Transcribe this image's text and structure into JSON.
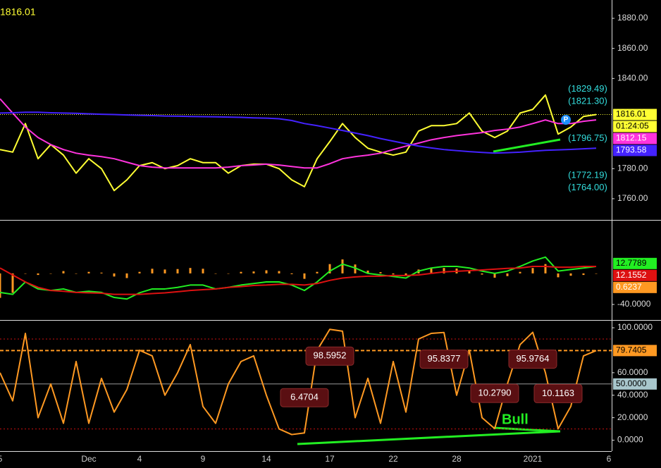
{
  "chart_data": [
    {
      "type": "line",
      "top_label": "1816.01",
      "marker": "P",
      "ylim": [
        1745.9,
        1892.2
      ],
      "yticks": [
        {
          "value": 1880,
          "label": "1880.00"
        },
        {
          "value": 1860,
          "label": "1860.00"
        },
        {
          "value": 1840,
          "label": "1840.00"
        },
        {
          "value": 1780,
          "label": "1780.00"
        },
        {
          "value": 1760,
          "label": "1760.00"
        }
      ],
      "series": [
        {
          "color": "#ffff33",
          "values": [
            1792.7,
            1791,
            1810,
            1786.6,
            1796,
            1789,
            1777,
            1786.6,
            1780,
            1765.4,
            1772.5,
            1782,
            1784,
            1780,
            1782,
            1786.6,
            1784,
            1784,
            1777,
            1782,
            1783,
            1783,
            1780,
            1772.5,
            1768,
            1786.6,
            1798,
            1810,
            1800.7,
            1793.6,
            1791,
            1789,
            1791,
            1805,
            1808.6,
            1808.6,
            1810,
            1817,
            1805,
            1800.7,
            1805,
            1817,
            1819.4,
            1829,
            1803,
            1807.7,
            1814.7,
            1816,
            null
          ]
        },
        {
          "color": "#ff33dd",
          "values": [
            1826.5,
            1817,
            1807.7,
            1800.7,
            1796,
            1792.7,
            1790.3,
            1789,
            1788,
            1786.6,
            1784.3,
            1782,
            1781,
            1780.5,
            1780.5,
            1780.5,
            1780.5,
            1780.5,
            1781,
            1782,
            1782.4,
            1783,
            1782.4,
            1781.4,
            1780.5,
            1780.5,
            1783.3,
            1786.6,
            1788,
            1789,
            1790.3,
            1792.7,
            1795,
            1797,
            1799.2,
            1800.7,
            1802,
            1803,
            1804,
            1805.4,
            1806.3,
            1807.7,
            1810,
            1812.4,
            1810,
            1810,
            1811.5,
            1812.4,
            null
          ]
        },
        {
          "color": "#4422ff",
          "values": [
            1817,
            1817.2,
            1817.5,
            1817.5,
            1817.2,
            1817,
            1816.8,
            1816.5,
            1816.2,
            1816,
            1815.7,
            1815.5,
            1815.3,
            1815,
            1814.9,
            1814.7,
            1814.6,
            1814.5,
            1814.3,
            1814.1,
            1813.8,
            1813.6,
            1813.2,
            1812,
            1810,
            1808.6,
            1807,
            1805.4,
            1803.7,
            1802,
            1800,
            1798.3,
            1796.6,
            1795,
            1793.8,
            1792.7,
            1792,
            1791.3,
            1790.8,
            1790.3,
            1790.6,
            1791,
            1791.6,
            1792.2,
            1792.5,
            1792.8,
            1793.2,
            1793.6,
            null
          ]
        }
      ],
      "annotations": [
        {
          "value": 1829.49,
          "label": "(1829.49)"
        },
        {
          "value": 1821.3,
          "label": "(1821.30)"
        },
        {
          "value": 1796.75,
          "label": "(1796.75)"
        },
        {
          "value": 1772.19,
          "label": "(1772.19)"
        },
        {
          "value": 1764,
          "label": "(1764.00)"
        }
      ],
      "right_labels": [
        {
          "value": 1816.01,
          "label": "1816.01",
          "color": "#ffff33",
          "text_color": "#000000",
          "line": "dotted"
        },
        {
          "label": "01:24:05",
          "color": "#ffff33",
          "text_color": "#000000"
        },
        {
          "value": 1812.15,
          "label": "1812.15",
          "color": "#ff33dd",
          "text_color": "#ffffff"
        },
        {
          "value": 1793.58,
          "label": "1793.58",
          "color": "#4422ff",
          "text_color": "#ffffff"
        }
      ]
    },
    {
      "type": "line",
      "ylim": [
        -60,
        68
      ],
      "yticks": [
        {
          "value": -40,
          "label": "-40.0000"
        }
      ],
      "series": [
        {
          "kind": "histogram",
          "color": "#ff9922",
          "values": [
            -31.5,
            -25,
            0,
            -2,
            0,
            3,
            0,
            2,
            1,
            -4,
            -6,
            2,
            6,
            5,
            5.6,
            7,
            6,
            0,
            0,
            2,
            2.5,
            4,
            3,
            -1,
            -7,
            2,
            12,
            18,
            11.5,
            3.6,
            1.6,
            -1.3,
            -3.3,
            5,
            7,
            7,
            6.3,
            3.5,
            -1.5,
            -5.5,
            -3.5,
            2,
            7,
            12,
            -5,
            -3,
            -2,
            0,
            null
          ]
        },
        {
          "color": "#22ee22",
          "values": [
            -24.5,
            -27,
            -11,
            -20,
            -22,
            -20,
            -24.5,
            -23,
            -24.5,
            -31,
            -33,
            -25,
            -20,
            -20,
            -18,
            -15,
            -15,
            -20,
            -18,
            -15,
            -13,
            -11,
            -11,
            -15,
            -22,
            -11,
            3,
            12,
            7,
            0,
            -2,
            -4,
            -6,
            3,
            7,
            9,
            9,
            7,
            3,
            0,
            3,
            9,
            16,
            21,
            3,
            5,
            7,
            9,
            null
          ]
        },
        {
          "color": "#dd1111",
          "values": [
            7,
            -2,
            -11,
            -18,
            -22,
            -23,
            -24.5,
            -25,
            -25.5,
            -27,
            -27,
            -27,
            -26,
            -25,
            -23.6,
            -22,
            -21,
            -20,
            -18,
            -17,
            -15.5,
            -15,
            -14,
            -14,
            -15,
            -13,
            -9,
            -6,
            -4.5,
            -3.6,
            -3.6,
            -2.7,
            -2.7,
            -2,
            0,
            2,
            2.7,
            3.5,
            4.5,
            5.5,
            6.5,
            7,
            9,
            9,
            8,
            8,
            9,
            9,
            null
          ]
        }
      ],
      "right_labels": [
        {
          "value": 12.7789,
          "label": "12.7789",
          "color": "#22ee22",
          "text_color": "#000000"
        },
        {
          "value": 12.1552,
          "label": "12.1552",
          "color": "#dd1111",
          "text_color": "#ffffff"
        },
        {
          "value": 0.6237,
          "label": "0.6237",
          "color": "#ff9922",
          "text_color": "#ffffff"
        }
      ]
    },
    {
      "type": "line",
      "annotation": "Bull",
      "categories": [
        "5",
        null,
        null,
        null,
        null,
        null,
        null,
        "Dec",
        null,
        null,
        null,
        "4",
        null,
        null,
        null,
        null,
        "9",
        null,
        null,
        null,
        null,
        "14",
        null,
        null,
        null,
        null,
        "17",
        null,
        null,
        null,
        null,
        "22",
        null,
        null,
        null,
        null,
        "28",
        null,
        null,
        null,
        null,
        null,
        "2021",
        null,
        null,
        null,
        null,
        null,
        "6"
      ],
      "ylim": [
        -9.7,
        106.3
      ],
      "yticks": [
        {
          "value": 100,
          "label": "100.0000"
        },
        {
          "value": 60,
          "label": "60.0000"
        },
        {
          "value": 40,
          "label": "40.0000"
        },
        {
          "value": 20,
          "label": "20.0000"
        },
        {
          "value": 0,
          "label": "0.0000"
        }
      ],
      "levels": [
        {
          "value": 90,
          "color": "#cc1111"
        },
        {
          "value": 10,
          "color": "#cc1111"
        }
      ],
      "series": [
        {
          "color": "#ff9922",
          "values": [
            60,
            35,
            95,
            20,
            50,
            15,
            70,
            15,
            55,
            25,
            45,
            80,
            75,
            40,
            60,
            85,
            30,
            15,
            50,
            70,
            75,
            40,
            10,
            5,
            6.4704,
            80,
            98.5952,
            97,
            20,
            55,
            15,
            70,
            25,
            90,
            95,
            95.8377,
            40,
            80,
            20,
            10.279,
            50,
            85,
            95.9764,
            60,
            10.1163,
            30,
            75,
            79.7,
            null
          ],
          "value_labels": [
            null,
            null,
            null,
            null,
            null,
            null,
            null,
            null,
            null,
            null,
            null,
            null,
            null,
            null,
            null,
            null,
            null,
            null,
            null,
            null,
            null,
            null,
            null,
            null,
            "6.4704",
            null,
            "98.5952",
            null,
            null,
            null,
            null,
            null,
            null,
            null,
            null,
            "95.8377",
            null,
            null,
            null,
            "10.2790",
            null,
            null,
            "95.9764",
            null,
            "10.1163",
            null,
            null,
            null,
            null
          ]
        }
      ],
      "right_labels": [
        {
          "value": 79.7405,
          "label": "79.7405",
          "color": "#ff9922",
          "text_color": "#000000",
          "line": "dashed"
        },
        {
          "value": 50,
          "label": "50.0000",
          "color": "#a8c6cc",
          "text_color": "#000000",
          "line": "solid"
        }
      ]
    }
  ]
}
